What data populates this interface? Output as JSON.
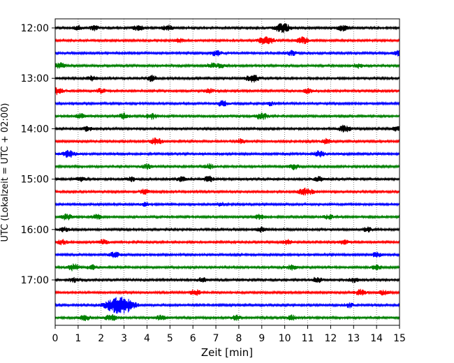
{
  "chart_data": {
    "type": "line",
    "title": "",
    "xlabel": "Zeit  [min]",
    "ylabel": "UTC (Lokalzeit = UTC + 02:00)",
    "xlim": [
      0,
      15
    ],
    "x_ticks": [
      0,
      1,
      2,
      3,
      4,
      5,
      6,
      7,
      8,
      9,
      10,
      11,
      12,
      13,
      14,
      15
    ],
    "y_tick_labels": [
      "12:00",
      "13:00",
      "14:00",
      "15:00",
      "16:00",
      "17:00"
    ],
    "grid": "vertical-dotted",
    "legend": "none",
    "trace_colors": [
      "#000000",
      "#ff0000",
      "#0000ff",
      "#008000"
    ],
    "traces": [
      {
        "start": "12:00",
        "color": "#000000",
        "events": [
          [
            1.0,
            0.5
          ],
          [
            1.7,
            0.5
          ],
          [
            3.6,
            0.6
          ],
          [
            4.9,
            0.6
          ],
          [
            9.9,
            1.0
          ],
          [
            12.5,
            0.6
          ]
        ]
      },
      {
        "start": "12:15",
        "color": "#ff0000",
        "events": [
          [
            5.4,
            0.4
          ],
          [
            9.2,
            0.9
          ],
          [
            10.8,
            0.7
          ]
        ]
      },
      {
        "start": "12:30",
        "color": "#0000ff",
        "events": [
          [
            7.0,
            0.6
          ],
          [
            10.3,
            0.5
          ],
          [
            15.0,
            0.6
          ]
        ]
      },
      {
        "start": "12:45",
        "color": "#008000",
        "events": [
          [
            0.2,
            0.6
          ],
          [
            6.8,
            0.5
          ],
          [
            7.2,
            0.5
          ],
          [
            13.2,
            0.5
          ]
        ]
      },
      {
        "start": "13:00",
        "color": "#000000",
        "events": [
          [
            1.6,
            0.5
          ],
          [
            4.2,
            0.6
          ],
          [
            8.6,
            0.8
          ]
        ]
      },
      {
        "start": "13:15",
        "color": "#ff0000",
        "events": [
          [
            0.1,
            0.7
          ],
          [
            2.0,
            0.5
          ],
          [
            6.7,
            0.5
          ],
          [
            11.0,
            0.5
          ]
        ]
      },
      {
        "start": "13:30",
        "color": "#0000ff",
        "events": [
          [
            7.3,
            0.6
          ],
          [
            9.4,
            0.4
          ]
        ]
      },
      {
        "start": "13:45",
        "color": "#008000",
        "events": [
          [
            1.1,
            0.5
          ],
          [
            3.0,
            0.6
          ],
          [
            4.2,
            0.6
          ],
          [
            9.0,
            0.7
          ]
        ]
      },
      {
        "start": "14:00",
        "color": "#000000",
        "events": [
          [
            1.4,
            0.5
          ],
          [
            12.6,
            0.7
          ],
          [
            14.9,
            0.5
          ]
        ]
      },
      {
        "start": "14:15",
        "color": "#ff0000",
        "events": [
          [
            4.4,
            0.7
          ],
          [
            8.1,
            0.5
          ],
          [
            11.8,
            0.5
          ]
        ]
      },
      {
        "start": "14:30",
        "color": "#0000ff",
        "events": [
          [
            0.6,
            0.7
          ],
          [
            11.5,
            0.6
          ]
        ]
      },
      {
        "start": "14:45",
        "color": "#008000",
        "events": [
          [
            4.0,
            0.5
          ],
          [
            6.7,
            0.5
          ],
          [
            10.4,
            0.6
          ]
        ]
      },
      {
        "start": "15:00",
        "color": "#000000",
        "events": [
          [
            1.1,
            0.5
          ],
          [
            3.3,
            0.5
          ],
          [
            5.5,
            0.5
          ],
          [
            6.7,
            0.6
          ],
          [
            11.5,
            0.5
          ]
        ]
      },
      {
        "start": "15:15",
        "color": "#ff0000",
        "events": [
          [
            3.9,
            0.5
          ],
          [
            10.8,
            0.6
          ],
          [
            11.1,
            0.5
          ]
        ]
      },
      {
        "start": "15:30",
        "color": "#0000ff",
        "events": [
          [
            3.9,
            0.4
          ],
          [
            7.2,
            0.4
          ]
        ]
      },
      {
        "start": "15:45",
        "color": "#008000",
        "events": [
          [
            0.5,
            0.6
          ],
          [
            1.8,
            0.5
          ],
          [
            8.9,
            0.5
          ],
          [
            11.9,
            0.5
          ]
        ]
      },
      {
        "start": "16:00",
        "color": "#000000",
        "events": [
          [
            0.4,
            0.5
          ],
          [
            9.0,
            0.5
          ],
          [
            13.6,
            0.5
          ]
        ]
      },
      {
        "start": "16:15",
        "color": "#ff0000",
        "events": [
          [
            0.3,
            0.5
          ],
          [
            2.1,
            0.5
          ],
          [
            10.1,
            0.5
          ],
          [
            12.6,
            0.5
          ]
        ]
      },
      {
        "start": "16:30",
        "color": "#0000ff",
        "events": [
          [
            2.6,
            0.6
          ],
          [
            14.0,
            0.5
          ]
        ]
      },
      {
        "start": "16:45",
        "color": "#008000",
        "events": [
          [
            0.8,
            0.7
          ],
          [
            1.6,
            0.5
          ],
          [
            10.3,
            0.5
          ],
          [
            14.0,
            0.5
          ]
        ]
      },
      {
        "start": "17:00",
        "color": "#000000",
        "events": [
          [
            0.8,
            0.5
          ],
          [
            6.4,
            0.5
          ],
          [
            11.4,
            0.6
          ],
          [
            13.0,
            0.5
          ]
        ]
      },
      {
        "start": "17:15",
        "color": "#ff0000",
        "events": [
          [
            6.1,
            0.6
          ],
          [
            13.3,
            0.6
          ],
          [
            14.3,
            0.5
          ]
        ]
      },
      {
        "start": "17:30",
        "color": "#0000ff",
        "events": [
          [
            2.6,
            1.4
          ],
          [
            3.1,
            1.2
          ],
          [
            12.8,
            0.5
          ]
        ]
      },
      {
        "start": "17:45",
        "color": "#008000",
        "events": [
          [
            1.3,
            0.6
          ],
          [
            2.4,
            0.7
          ],
          [
            4.6,
            0.5
          ],
          [
            7.9,
            0.5
          ],
          [
            10.3,
            0.5
          ]
        ]
      }
    ]
  }
}
